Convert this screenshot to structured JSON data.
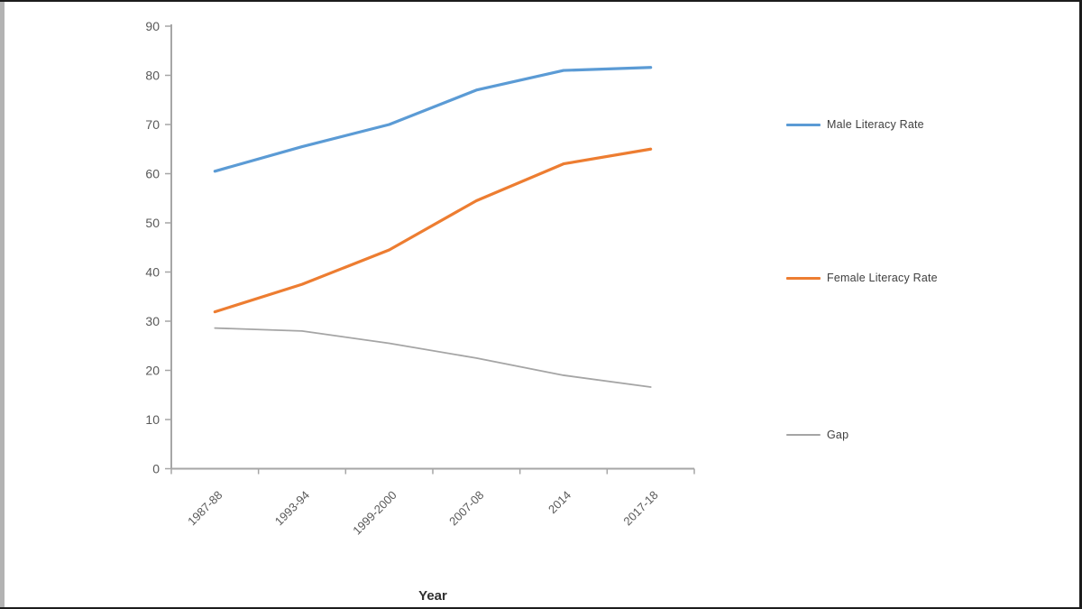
{
  "chart_data": {
    "type": "line",
    "title": "",
    "xlabel": "Year",
    "ylabel": "",
    "categories": [
      "1987-88",
      "1993-94",
      "1999-2000",
      "2007-08",
      "2014",
      "2017-18"
    ],
    "series": [
      {
        "name": "Male Literacy Rate",
        "color": "#5B9BD5",
        "stroke_width": 3.2,
        "values": [
          60.5,
          65.5,
          70,
          77,
          81,
          81.6
        ]
      },
      {
        "name": "Female Literacy Rate",
        "color": "#ED7D31",
        "stroke_width": 3.2,
        "values": [
          31.9,
          37.5,
          44.5,
          54.5,
          62,
          65
        ]
      },
      {
        "name": "Gap",
        "color": "#A5A5A5",
        "stroke_width": 1.8,
        "values": [
          28.6,
          28,
          25.5,
          22.5,
          19,
          16.6
        ]
      }
    ],
    "ylim": [
      0,
      90
    ],
    "ytick_step": 10,
    "grid": false,
    "legend_position": "right",
    "axis_color": "#A6A6A6",
    "tick_label_color": "#595959"
  }
}
